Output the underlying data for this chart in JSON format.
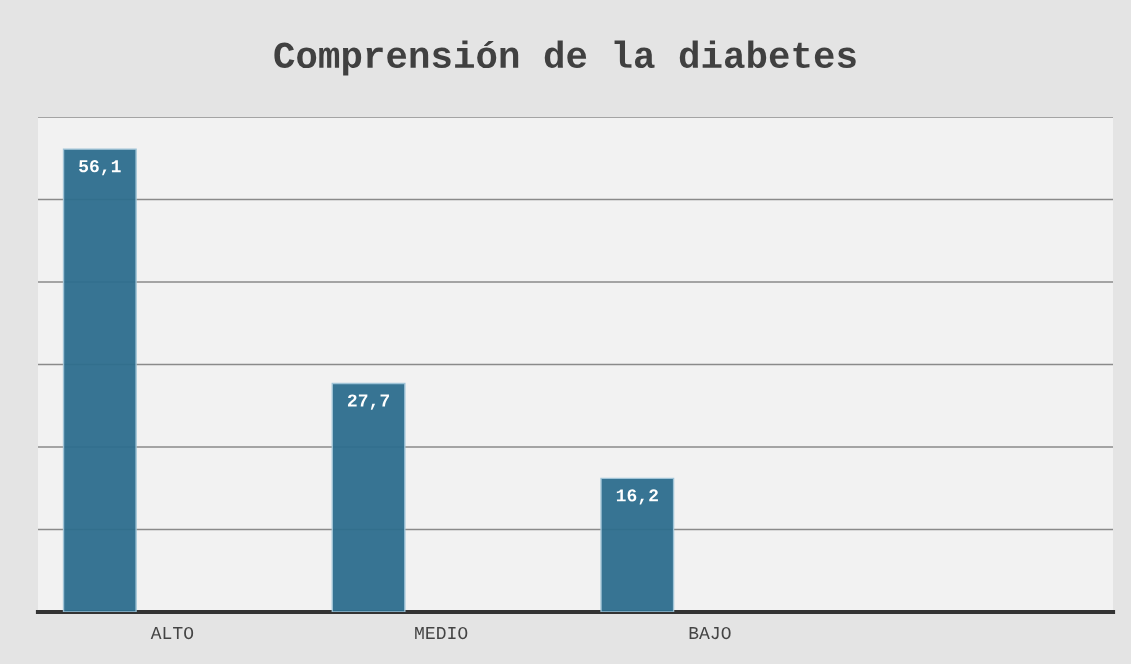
{
  "chart_data": {
    "type": "bar",
    "title": "Comprensión de la diabetes",
    "categories": [
      "ALTO",
      "MEDIO",
      "BAJO",
      null
    ],
    "values": [
      56.1,
      27.7,
      16.2,
      null
    ],
    "value_labels": [
      "56,1",
      "27,7",
      "16,2",
      null
    ],
    "color": "#2e6e8e",
    "ylim": [
      0,
      60
    ],
    "yticks": [
      {
        "value": 0,
        "label": null
      },
      {
        "value": 10,
        "label": null
      },
      {
        "value": 20,
        "label": null
      },
      {
        "value": 30,
        "label": null
      },
      {
        "value": 40,
        "label": null
      },
      {
        "value": 50,
        "label": null
      },
      {
        "value": 60,
        "label": null
      }
    ],
    "grid": "y",
    "tick_labels": "x"
  }
}
